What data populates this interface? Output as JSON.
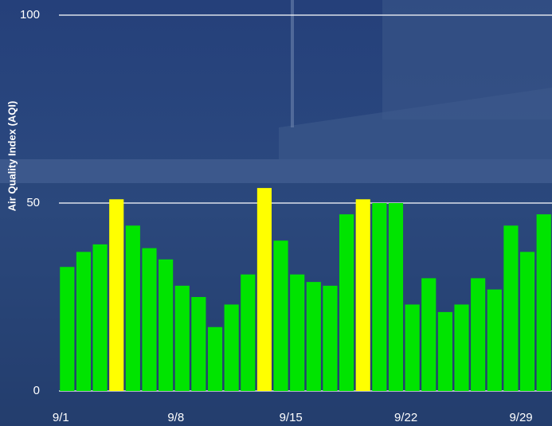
{
  "chart_data": {
    "type": "bar",
    "y_label": "Air Quality Index (AQI)",
    "categories": [
      "9/1",
      null,
      null,
      null,
      null,
      null,
      null,
      "9/8",
      null,
      null,
      null,
      null,
      null,
      null,
      "9/15",
      null,
      null,
      null,
      null,
      null,
      null,
      "9/22",
      null,
      null,
      null,
      null,
      null,
      null,
      "9/29",
      null
    ],
    "values": [
      33,
      37,
      39,
      51,
      44,
      38,
      35,
      28,
      25,
      17,
      23,
      31,
      54,
      40,
      31,
      29,
      28,
      47,
      51,
      50,
      50,
      23,
      30,
      21,
      23,
      30,
      27,
      44,
      37,
      47
    ],
    "colors": [
      "#00e400",
      "#00e400",
      "#00e400",
      "#ffff00",
      "#00e400",
      "#00e400",
      "#00e400",
      "#00e400",
      "#00e400",
      "#00e400",
      "#00e400",
      "#00e400",
      "#ffff00",
      "#00e400",
      "#00e400",
      "#00e400",
      "#00e400",
      "#00e400",
      "#ffff00",
      "#00e400",
      "#00e400",
      "#00e400",
      "#00e400",
      "#00e400",
      "#00e400",
      "#00e400",
      "#00e400",
      "#00e400",
      "#00e400",
      "#00e400"
    ],
    "ylim": [
      0,
      100
    ],
    "yticks": [
      0,
      50,
      100
    ],
    "grid": true
  }
}
